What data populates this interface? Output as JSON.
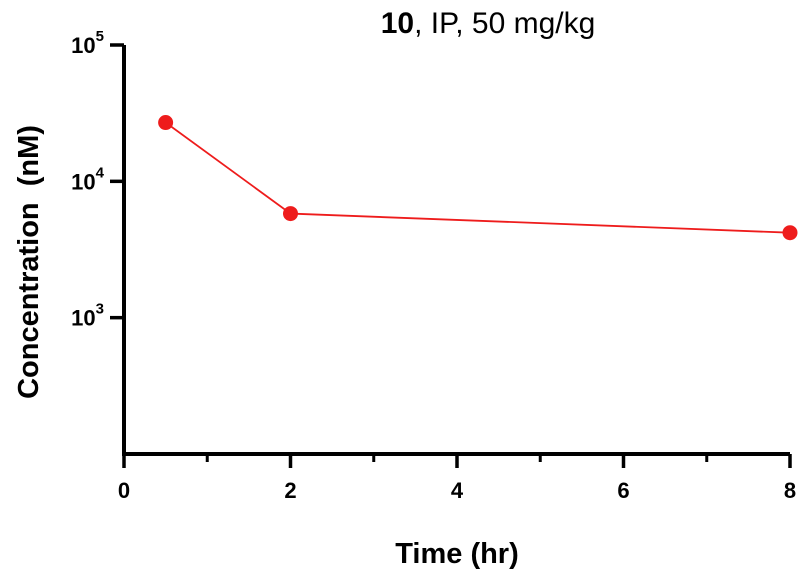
{
  "chart_data": {
    "type": "line",
    "title_bold": "10",
    "title_rest": ", IP, 50 mg/kg",
    "xlabel": "Time (hr)",
    "ylabel": "Concentration  (nM)",
    "x_scale": "linear",
    "y_scale": "log",
    "xlim": [
      0,
      8
    ],
    "ylim": [
      100,
      100000
    ],
    "x_ticks": [
      0,
      2,
      4,
      6,
      8
    ],
    "x_tick_labels": [
      "0",
      "2",
      "4",
      "6",
      "8"
    ],
    "x_minor_ticks": [
      1,
      3,
      5,
      7
    ],
    "y_ticks": [
      {
        "value": 1000,
        "base": "10",
        "exp": "3"
      },
      {
        "value": 10000,
        "base": "10",
        "exp": "4"
      },
      {
        "value": 100000,
        "base": "10",
        "exp": "5"
      }
    ],
    "grid": false,
    "series": [
      {
        "color": "#ee1c1c",
        "points": [
          {
            "x": 0.5,
            "y": 27000
          },
          {
            "x": 2,
            "y": 5800
          },
          {
            "x": 8,
            "y": 4200
          }
        ]
      }
    ]
  }
}
